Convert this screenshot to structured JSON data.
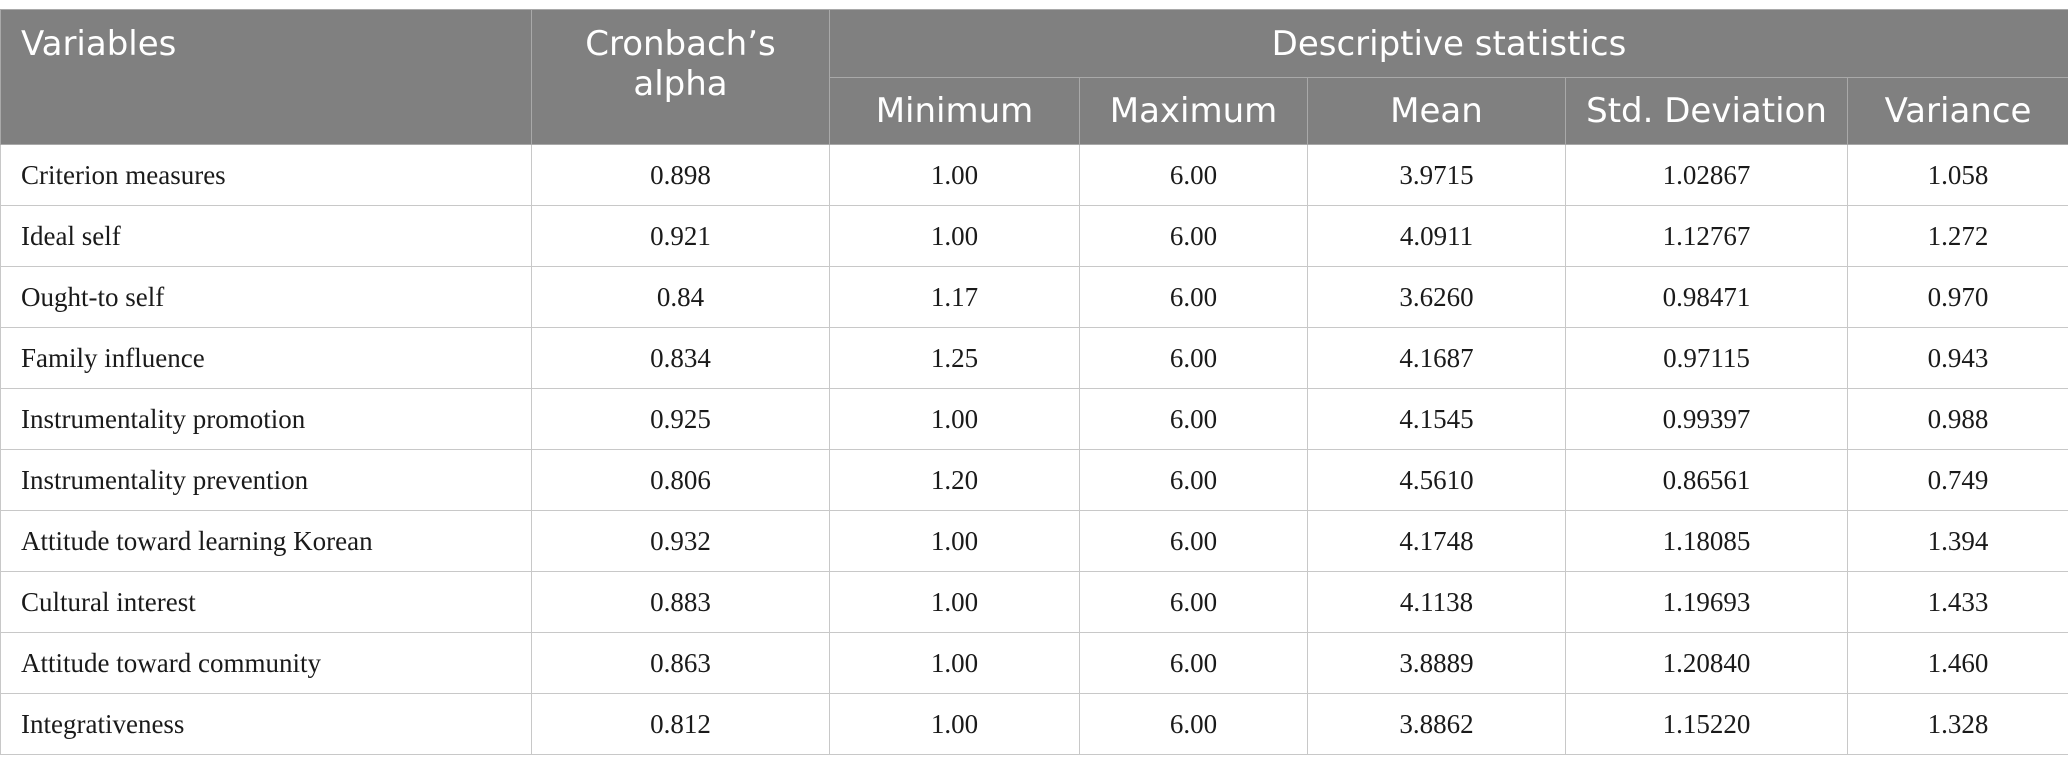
{
  "headers": {
    "variables": "Variables",
    "alpha_line1": "Cronbach’s",
    "alpha_line2": "alpha",
    "group": "Descriptive statistics",
    "sub": [
      "Minimum",
      "Maximum",
      "Mean",
      "Std. Deviation",
      "Variance"
    ]
  },
  "rows": [
    {
      "variable": "Criterion measures",
      "alpha": "0.898",
      "min": "1.00",
      "max": "6.00",
      "mean": "3.9715",
      "sd": "1.02867",
      "var": "1.058"
    },
    {
      "variable": "Ideal self",
      "alpha": "0.921",
      "min": "1.00",
      "max": "6.00",
      "mean": "4.0911",
      "sd": "1.12767",
      "var": "1.272"
    },
    {
      "variable": "Ought-to self",
      "alpha": "0.84",
      "min": "1.17",
      "max": "6.00",
      "mean": "3.6260",
      "sd": "0.98471",
      "var": "0.970"
    },
    {
      "variable": "Family influence",
      "alpha": "0.834",
      "min": "1.25",
      "max": "6.00",
      "mean": "4.1687",
      "sd": "0.97115",
      "var": "0.943"
    },
    {
      "variable": "Instrumentality promotion",
      "alpha": "0.925",
      "min": "1.00",
      "max": "6.00",
      "mean": "4.1545",
      "sd": "0.99397",
      "var": "0.988"
    },
    {
      "variable": "Instrumentality prevention",
      "alpha": "0.806",
      "min": "1.20",
      "max": "6.00",
      "mean": "4.5610",
      "sd": "0.86561",
      "var": "0.749"
    },
    {
      "variable": "Attitude toward learning Korean",
      "alpha": "0.932",
      "min": "1.00",
      "max": "6.00",
      "mean": "4.1748",
      "sd": "1.18085",
      "var": "1.394"
    },
    {
      "variable": "Cultural interest",
      "alpha": "0.883",
      "min": "1.00",
      "max": "6.00",
      "mean": "4.1138",
      "sd": "1.19693",
      "var": "1.433"
    },
    {
      "variable": "Attitude toward community",
      "alpha": "0.863",
      "min": "1.00",
      "max": "6.00",
      "mean": "3.8889",
      "sd": "1.20840",
      "var": "1.460"
    },
    {
      "variable": "Integrativeness",
      "alpha": "0.812",
      "min": "1.00",
      "max": "6.00",
      "mean": "3.8862",
      "sd": "1.15220",
      "var": "1.328"
    }
  ]
}
